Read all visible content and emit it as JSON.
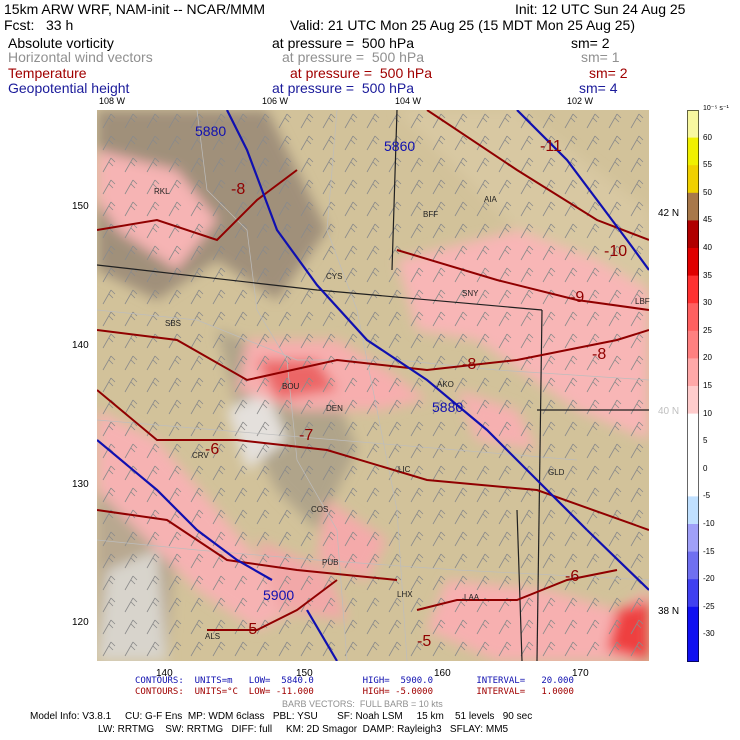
{
  "header": {
    "model": "15km ARW WRF, NAM-init -- NCAR/MMM",
    "init": "Init: 12 UTC Sun 24 Aug 25",
    "fcst": "Fcst:   33 h",
    "valid": "Valid: 21 UTC Mon 25 Aug 25 (15 MDT Mon 25 Aug 25)"
  },
  "fields": [
    {
      "name": "Absolute vorticity",
      "level": "at pressure =  500 hPa",
      "sm": "sm= 2",
      "color": "#000000"
    },
    {
      "name": "Horizontal wind vectors",
      "level": "at pressure =  500 hPa",
      "sm": "sm= 1",
      "color": "#909090"
    },
    {
      "name": "Temperature",
      "level": "at pressure =  500 hPa",
      "sm": "sm= 2",
      "color": "#a00000"
    },
    {
      "name": "Geopotential height",
      "level": "at pressure =  500 hPa",
      "sm": "sm= 4",
      "color": "#1a1a9a"
    }
  ],
  "map": {
    "lon_top": [
      "108 W",
      "106 W",
      "104 W",
      "102 W"
    ],
    "lat_right": [
      "42 N",
      "40 N",
      "38 N"
    ],
    "grid_left": [
      "150",
      "140",
      "130",
      "120"
    ],
    "grid_bottom": [
      "140",
      "150",
      "160",
      "170"
    ],
    "stations": [
      "RKL",
      "BFF",
      "AIA",
      "CYS",
      "SNY",
      "LBF",
      "SBS",
      "BOU",
      "AKO",
      "DEN",
      "CRV",
      "LIC",
      "GLD",
      "COS",
      "PUB",
      "LHX",
      "LAA",
      "ALS"
    ],
    "height_labels": [
      "5880",
      "5860",
      "5880",
      "5900"
    ],
    "temp_labels": [
      "-8",
      "-11",
      "-10",
      "-9",
      "-8",
      "-8",
      "-7",
      "-6",
      "-6",
      "-5",
      "-5"
    ],
    "colors": {
      "terrain": "#a8987a",
      "pink": "#f8b0b0",
      "red": "#ee5050",
      "geo_line": "#1010b0",
      "temp_line": "#900000"
    }
  },
  "colorbar": {
    "units": "10⁻⁵ s⁻¹",
    "labels": [
      "60",
      "55",
      "50",
      "45",
      "40",
      "35",
      "30",
      "25",
      "20",
      "15",
      "10",
      "5",
      "0",
      "-5",
      "-10",
      "-15",
      "-20",
      "-25",
      "-30"
    ],
    "colors": [
      "#f8f8a0",
      "#f0f000",
      "#f0d000",
      "#a8784a",
      "#b00000",
      "#e00000",
      "#ff3030",
      "#ff6060",
      "#ff8080",
      "#ffa8a8",
      "#ffcccc",
      "#ffffff",
      "#ffffff",
      "#ffffff",
      "#c0e0ff",
      "#a0a0f8",
      "#7070f0",
      "#4040f0",
      "#1010f0"
    ]
  },
  "footer": {
    "contours1": "CONTOURS:  UNITS=m   LOW=  5840.0         HIGH=  5900.0        INTERVAL=   20.000",
    "contours2": "CONTOURS:  UNITS=°C  LOW= -11.000         HIGH= -5.0000        INTERVAL=   1.0000",
    "barb": "BARB VECTORS:  FULL BARB = 10 kts",
    "info1": "Model Info: V3.8.1     CU: G-F Ens  MP: WDM 6class   PBL: YSU       SF: Noah LSM     15 km    51 levels   90 sec",
    "info2": "LW: RRTMG    SW: RRTMG   DIFF: full     KM: 2D Smagor  DAMP: Rayleigh3   SFLAY: MM5"
  }
}
